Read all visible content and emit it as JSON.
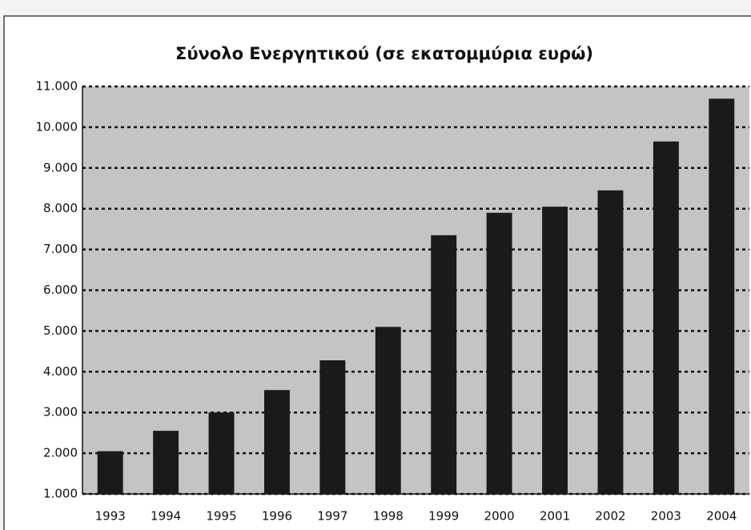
{
  "chart_data": {
    "type": "bar",
    "title": "Σύνολο Ενεργητικού (σε εκατομμύρια ευρώ)",
    "categories": [
      "1993",
      "1994",
      "1995",
      "1996",
      "1997",
      "1998",
      "1999",
      "2000",
      "2001",
      "2002",
      "2003",
      "2004"
    ],
    "values": [
      2050,
      2550,
      3000,
      3550,
      4280,
      5100,
      7350,
      7900,
      8050,
      8450,
      9650,
      10700
    ],
    "color": "#1a1a1a",
    "ylim": [
      1000,
      11000
    ],
    "yticks": [
      {
        "value": 1000,
        "label": "1.000"
      },
      {
        "value": 2000,
        "label": "2.000"
      },
      {
        "value": 3000,
        "label": "3.000"
      },
      {
        "value": 4000,
        "label": "4.000"
      },
      {
        "value": 5000,
        "label": "5.000"
      },
      {
        "value": 6000,
        "label": "6.000"
      },
      {
        "value": 7000,
        "label": "7.000"
      },
      {
        "value": 8000,
        "label": "8.000"
      },
      {
        "value": 9000,
        "label": "9.000"
      },
      {
        "value": 10000,
        "label": "10.000"
      },
      {
        "value": 11000,
        "label": "11.000"
      }
    ],
    "grid": true
  }
}
